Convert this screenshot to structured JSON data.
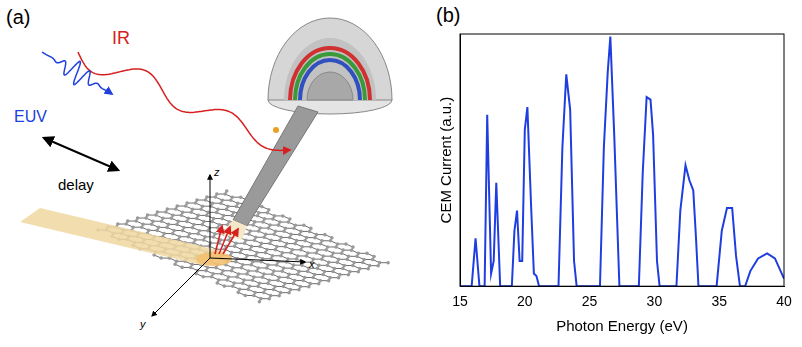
{
  "panel_labels": [
    "(a)",
    "(b)"
  ],
  "diagram": {
    "beams": {
      "ir": "IR",
      "euv": "EUV",
      "delay": "delay"
    },
    "axes": {
      "x": "x",
      "y": "y",
      "z": "z"
    }
  },
  "chart_data": {
    "type": "line",
    "x_label": "Photon Energy (eV)",
    "y_label": "CEM Current (a.u.)",
    "x": [
      15.0,
      15.9,
      16.2,
      16.5,
      16.9,
      17.1,
      17.4,
      17.6,
      17.8,
      18.1,
      19.0,
      19.2,
      19.4,
      19.6,
      19.8,
      20.0,
      20.2,
      20.5,
      20.7,
      20.9,
      21.1,
      22.6,
      22.9,
      23.2,
      23.5,
      23.8,
      24.0,
      25.8,
      26.1,
      26.4,
      26.6,
      26.9,
      27.3,
      28.8,
      29.1,
      29.4,
      29.7,
      29.9,
      30.2,
      30.4,
      31.7,
      32.0,
      32.4,
      32.7,
      33.0,
      33.2,
      33.4,
      34.8,
      35.2,
      35.6,
      36.0,
      36.3,
      36.6,
      37.0,
      37.4,
      38.0,
      38.7,
      39.3,
      40.0
    ],
    "values": [
      0.0,
      0.0,
      0.19,
      0.0,
      0.0,
      0.68,
      0.05,
      0.1,
      0.41,
      0.0,
      0.0,
      0.22,
      0.3,
      0.1,
      0.1,
      0.62,
      0.71,
      0.3,
      0.05,
      0.04,
      0.0,
      0.0,
      0.55,
      0.84,
      0.7,
      0.1,
      0.0,
      0.0,
      0.55,
      0.85,
      0.99,
      0.6,
      0.0,
      0.0,
      0.45,
      0.75,
      0.74,
      0.6,
      0.1,
      0.0,
      0.0,
      0.3,
      0.48,
      0.42,
      0.38,
      0.2,
      0.0,
      0.0,
      0.22,
      0.31,
      0.31,
      0.12,
      0.0,
      0.0,
      0.06,
      0.11,
      0.13,
      0.11,
      0.03
    ],
    "color": "#1f3ee0",
    "xlim": [
      15,
      40
    ],
    "xticks": [
      15,
      20,
      25,
      30,
      35,
      40
    ],
    "ylim": [
      0,
      1
    ],
    "grid": false,
    "tick_labels": "x"
  }
}
